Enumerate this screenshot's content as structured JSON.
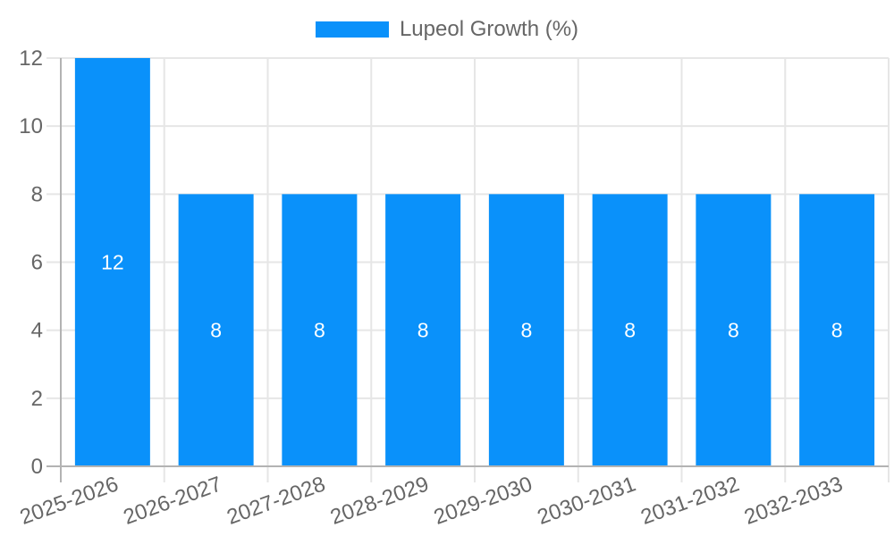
{
  "legend": {
    "label": "Lupeol Growth (%)"
  },
  "colors": {
    "bar": "#0a91fa",
    "grid": "#e6e6e6",
    "axis_border": "#b3b3b3",
    "tick_text": "#666666",
    "bar_value_text": "#ffffff",
    "background": "#ffffff"
  },
  "chart_data": {
    "type": "bar",
    "title": "",
    "categories": [
      "2025-2026",
      "2026-2027",
      "2027-2028",
      "2028-2029",
      "2029-2030",
      "2030-2031",
      "2031-2032",
      "2032-2033"
    ],
    "series": [
      {
        "name": "Lupeol Growth (%)",
        "values": [
          12,
          8,
          8,
          8,
          8,
          8,
          8,
          8
        ]
      }
    ],
    "bar_value_labels": [
      "12",
      "8",
      "8",
      "8",
      "8",
      "8",
      "8",
      "8"
    ],
    "y_tick_labels": [
      "0",
      "2",
      "4",
      "6",
      "8",
      "10",
      "12"
    ],
    "yticks": [
      0,
      2,
      4,
      6,
      8,
      10,
      12
    ],
    "ylim": [
      0,
      12
    ],
    "xlabel": "",
    "ylabel": "",
    "grid": true,
    "legend_position": "top",
    "x_tick_rotation_deg": -20
  }
}
